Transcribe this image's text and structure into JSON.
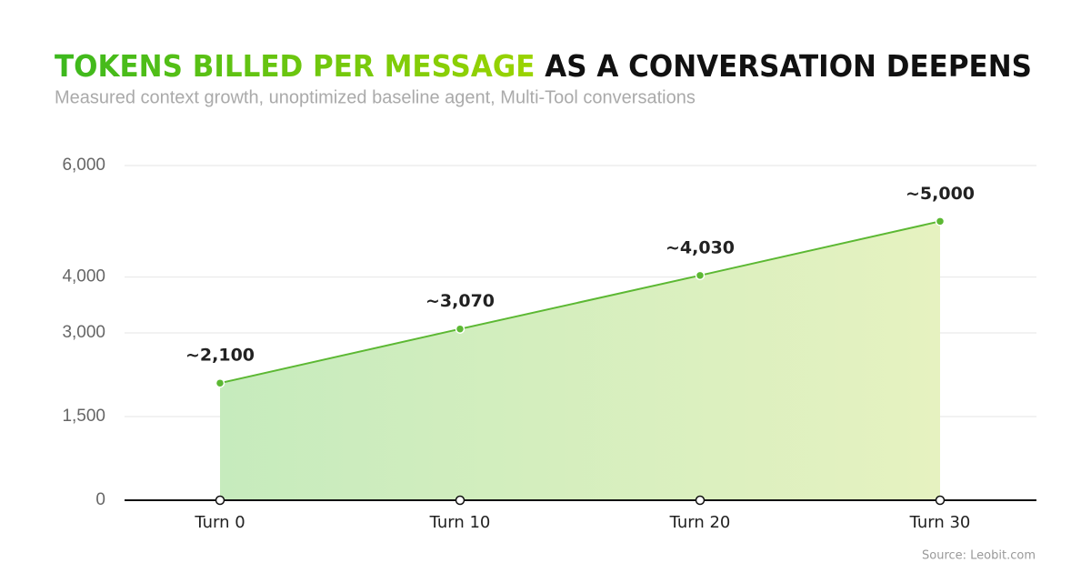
{
  "chart_data": {
    "type": "area",
    "title_highlight": "TOKENS BILLED PER MESSAGE",
    "title_rest": "AS A CONVERSATION DEEPENS",
    "subtitle": "Measured context growth, unoptimized baseline agent, Multi-Tool conversations",
    "source": "Source: Leobit.com",
    "categories": [
      "Turn 0",
      "Turn 10",
      "Turn 20",
      "Turn 30"
    ],
    "values": [
      2100,
      3070,
      4030,
      5000
    ],
    "value_labels": [
      "~2,100",
      "~3,070",
      "~4,030",
      "~5,000"
    ],
    "color": "#5cb833",
    "ylim": [
      0,
      6000
    ],
    "yticks": [
      0,
      {
        "value": 1500,
        "label": "1,500"
      },
      {
        "value": 3000,
        "label": "3,000"
      },
      {
        "value": 4000,
        "label": "4,000"
      },
      {
        "value": 6000,
        "label": "6,000"
      }
    ],
    "grid": true
  }
}
